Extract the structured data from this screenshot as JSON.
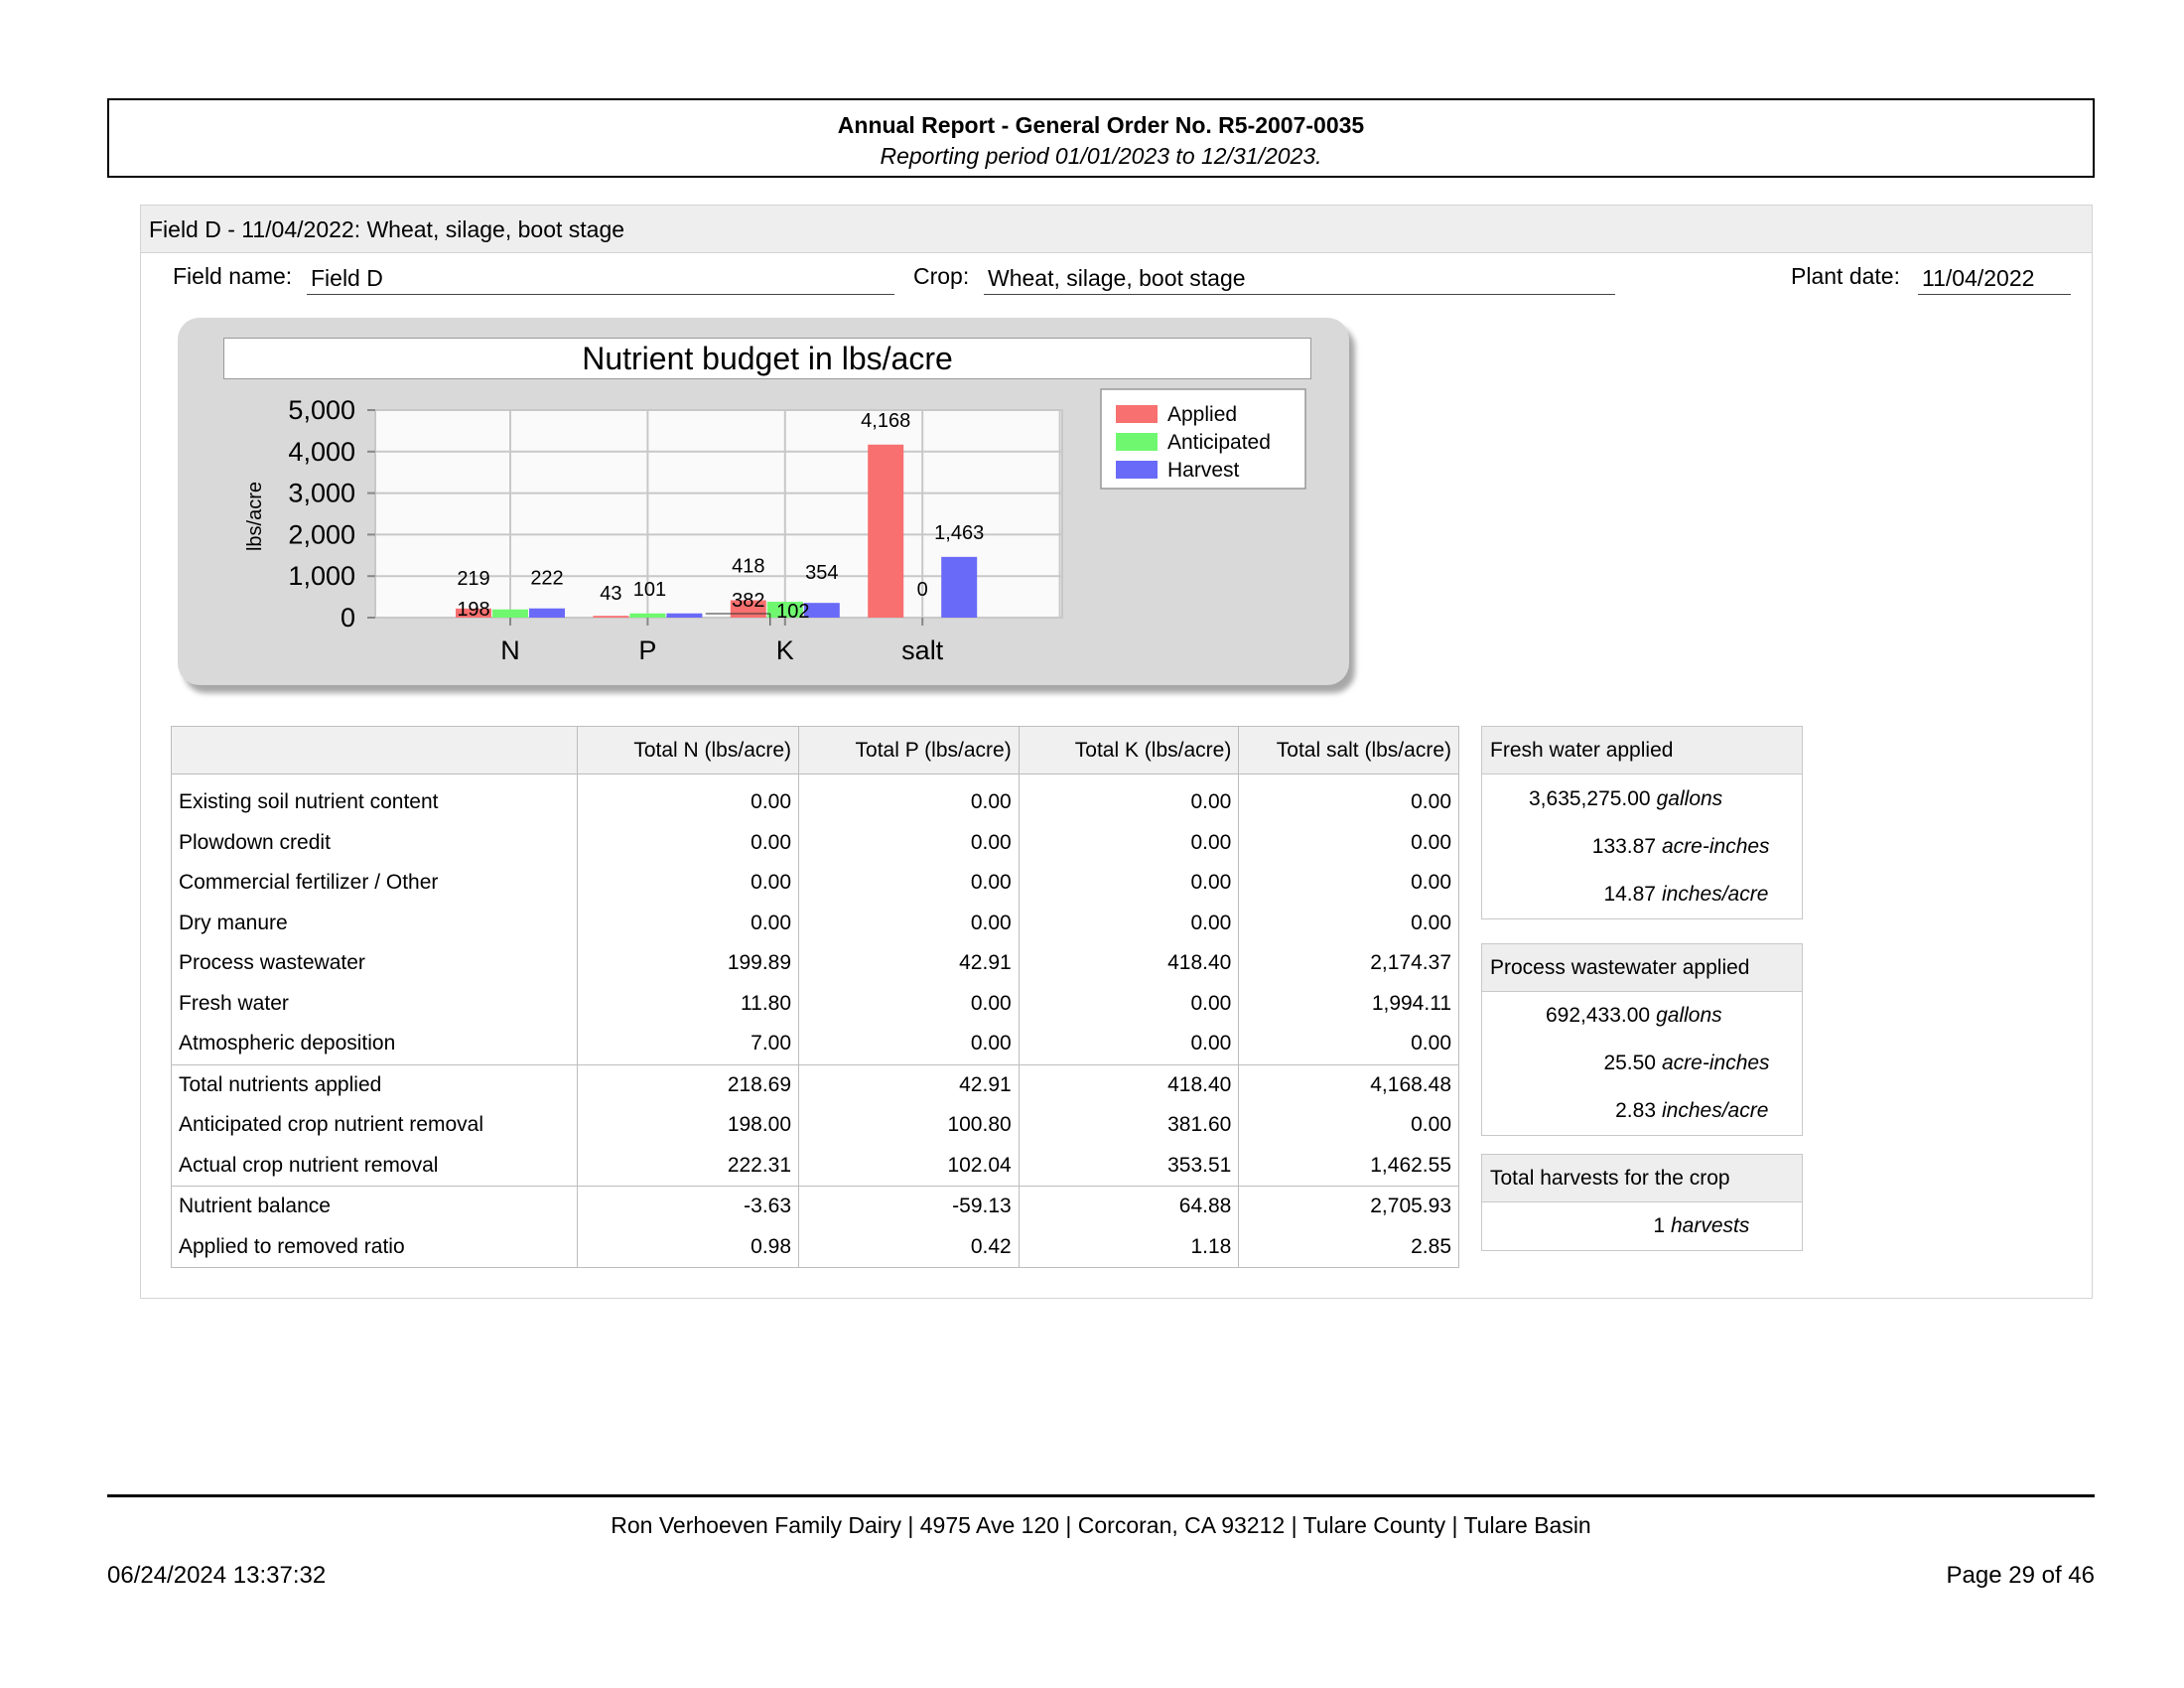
{
  "header": {
    "title": "Annual Report - General Order No. R5-2007-0035",
    "subtitle": "Reporting period 01/01/2023 to 12/31/2023."
  },
  "field": {
    "heading": "Field D - 11/04/2022: Wheat, silage, boot stage",
    "field_name_label": "Field name:",
    "field_name": "Field D",
    "crop_label": "Crop:",
    "crop": "Wheat, silage, boot stage",
    "plant_date_label": "Plant date:",
    "plant_date": "11/04/2022"
  },
  "chart_data": {
    "type": "bar",
    "title": "Nutrient budget in lbs/acre",
    "ylabel": "lbs/acre",
    "xlabel": "",
    "ylim": [
      0,
      5000
    ],
    "yticks": [
      "0",
      "1,000",
      "2,000",
      "3,000",
      "4,000",
      "5,000"
    ],
    "categories": [
      "N",
      "P",
      "K",
      "salt"
    ],
    "legend_position": "top-right",
    "grid": true,
    "series": [
      {
        "name": "Applied",
        "color": "#f87070",
        "values": [
          219,
          43,
          418,
          4168
        ],
        "labels": [
          "219",
          "43",
          "418",
          "4,168"
        ]
      },
      {
        "name": "Anticipated",
        "color": "#6ff86f",
        "values": [
          198,
          101,
          382,
          0
        ],
        "labels": [
          "198",
          "101",
          "382",
          "0"
        ]
      },
      {
        "name": "Harvest",
        "color": "#6a6af8",
        "values": [
          222,
          102,
          354,
          1463
        ],
        "labels": [
          "222",
          "",
          "354",
          "1,463"
        ]
      }
    ],
    "extra_labels": [
      "102"
    ]
  },
  "nutrient_table": {
    "headers": [
      "",
      "Total N (lbs/acre)",
      "Total P (lbs/acre)",
      "Total K (lbs/acre)",
      "Total salt (lbs/acre)"
    ],
    "rows": [
      [
        "Existing soil nutrient content",
        "0.00",
        "0.00",
        "0.00",
        "0.00"
      ],
      [
        "Plowdown credit",
        "0.00",
        "0.00",
        "0.00",
        "0.00"
      ],
      [
        "Commercial fertilizer / Other",
        "0.00",
        "0.00",
        "0.00",
        "0.00"
      ],
      [
        "Dry manure",
        "0.00",
        "0.00",
        "0.00",
        "0.00"
      ],
      [
        "Process wastewater",
        "199.89",
        "42.91",
        "418.40",
        "2,174.37"
      ],
      [
        "Fresh water",
        "11.80",
        "0.00",
        "0.00",
        "1,994.11"
      ],
      [
        "Atmospheric deposition",
        "7.00",
        "0.00",
        "0.00",
        "0.00"
      ],
      [
        "Total nutrients applied",
        "218.69",
        "42.91",
        "418.40",
        "4,168.48"
      ],
      [
        "Anticipated crop nutrient removal",
        "198.00",
        "100.80",
        "381.60",
        "0.00"
      ],
      [
        "Actual crop nutrient removal",
        "222.31",
        "102.04",
        "353.51",
        "1,462.55"
      ],
      [
        "Nutrient balance",
        "-3.63",
        "-59.13",
        "64.88",
        "2,705.93"
      ],
      [
        "Applied to removed ratio",
        "0.98",
        "0.42",
        "1.18",
        "2.85"
      ]
    ]
  },
  "fresh_water": {
    "title": "Fresh water applied",
    "rows": [
      {
        "value": "3,635,275.00",
        "unit": "gallons"
      },
      {
        "value": "133.87",
        "unit": "acre-inches"
      },
      {
        "value": "14.87",
        "unit": "inches/acre"
      }
    ]
  },
  "process_wastewater": {
    "title": "Process wastewater applied",
    "rows": [
      {
        "value": "692,433.00",
        "unit": "gallons"
      },
      {
        "value": "25.50",
        "unit": "acre-inches"
      },
      {
        "value": "2.83",
        "unit": "inches/acre"
      }
    ]
  },
  "harvests": {
    "title": "Total harvests for the crop",
    "value": "1",
    "unit": "harvests"
  },
  "footer": {
    "address": "Ron Verhoeven Family Dairy | 4975 Ave 120 | Corcoran, CA 93212 | Tulare County | Tulare Basin",
    "timestamp": "06/24/2024 13:37:32",
    "page": "Page 29 of 46"
  }
}
